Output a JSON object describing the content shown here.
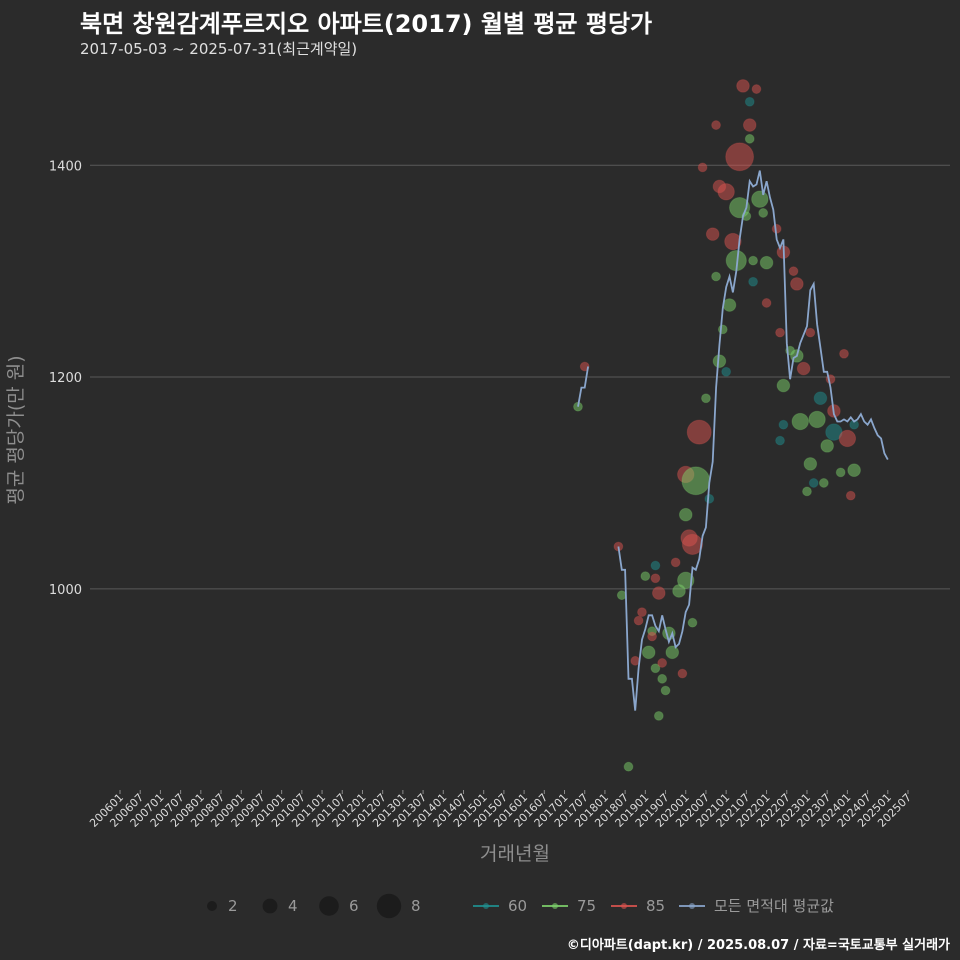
{
  "title": "북면 창원감계푸르지오 아파트(2017) 월별 평균 평당가",
  "subtitle": "2017-05-03 ~ 2025-07-31(최근계약일)",
  "footer": "©디아파트(dapt.kr) / 2025.08.07 / 자료=국토교통부 실거래가",
  "colors": {
    "background": "#2b2b2b",
    "grid": "#5a5a5a",
    "s60": "#1f8f8f",
    "s75": "#7ccf6a",
    "s85": "#d9534f",
    "avg": "#8aa6cc"
  },
  "chart_data": {
    "type": "scatter",
    "title": "북면 창원감계푸르지오 아파트(2017) 월별 평균 평당가",
    "xlabel": "거래년월",
    "ylabel": "평균 평당가(만 원)",
    "yticks": [
      1000,
      1200,
      1400
    ],
    "ylim": [
      810,
      1490
    ],
    "grid": true,
    "legend_position": "bottom",
    "x_ticks": [
      "200601",
      "200607",
      "200701",
      "200707",
      "200801",
      "200807",
      "200901",
      "200907",
      "201001",
      "201007",
      "201101",
      "201107",
      "201201",
      "201207",
      "201301",
      "201307",
      "201401",
      "201407",
      "201501",
      "201507",
      "201601",
      "201607",
      "201701",
      "201707",
      "201801",
      "201807",
      "201901",
      "201907",
      "202001",
      "202007",
      "202101",
      "202107",
      "202201",
      "202207",
      "202301",
      "202307",
      "202401",
      "202407",
      "202501",
      "202507"
    ],
    "size_legend": [
      {
        "label": "2",
        "value": 2
      },
      {
        "label": "4",
        "value": 4
      },
      {
        "label": "6",
        "value": 6
      },
      {
        "label": "8",
        "value": 8
      }
    ],
    "series_legend": [
      {
        "label": "60",
        "color": "#1f8f8f"
      },
      {
        "label": "75",
        "color": "#7ccf6a"
      },
      {
        "label": "85",
        "color": "#d9534f"
      },
      {
        "label": "모든 면적대 평균값",
        "color": "#8aa6cc"
      }
    ],
    "average_line": [
      {
        "segment": [
          [
            "2017-05",
            1172
          ],
          [
            "2017-06",
            1190
          ],
          [
            "2017-07",
            1190
          ],
          [
            "2017-08",
            1210
          ]
        ]
      },
      {
        "segment": [
          [
            "2018-05",
            1040
          ],
          [
            "2018-06",
            1018
          ],
          [
            "2018-07",
            1018
          ],
          [
            "2018-08",
            915
          ],
          [
            "2018-09",
            915
          ],
          [
            "2018-10",
            885
          ],
          [
            "2018-11",
            925
          ],
          [
            "2018-12",
            952
          ],
          [
            "2019-01",
            962
          ],
          [
            "2019-02",
            975
          ],
          [
            "2019-03",
            975
          ],
          [
            "2019-04",
            965
          ],
          [
            "2019-05",
            960
          ],
          [
            "2019-06",
            975
          ],
          [
            "2019-07",
            962
          ],
          [
            "2019-08",
            950
          ],
          [
            "2019-09",
            958
          ],
          [
            "2019-10",
            945
          ],
          [
            "2019-11",
            948
          ],
          [
            "2019-12",
            960
          ],
          [
            "2020-01",
            978
          ],
          [
            "2020-02",
            985
          ],
          [
            "2020-03",
            1020
          ],
          [
            "2020-04",
            1018
          ],
          [
            "2020-05",
            1028
          ],
          [
            "2020-06",
            1050
          ],
          [
            "2020-07",
            1058
          ],
          [
            "2020-08",
            1100
          ],
          [
            "2020-09",
            1120
          ],
          [
            "2020-10",
            1190
          ],
          [
            "2020-11",
            1230
          ],
          [
            "2020-12",
            1265
          ],
          [
            "2021-01",
            1285
          ],
          [
            "2021-02",
            1295
          ],
          [
            "2021-03",
            1280
          ],
          [
            "2021-04",
            1300
          ],
          [
            "2021-05",
            1330
          ],
          [
            "2021-06",
            1352
          ],
          [
            "2021-07",
            1360
          ],
          [
            "2021-08",
            1385
          ],
          [
            "2021-09",
            1380
          ],
          [
            "2021-10",
            1382
          ],
          [
            "2021-11",
            1395
          ],
          [
            "2021-12",
            1372
          ],
          [
            "2022-01",
            1385
          ],
          [
            "2022-02",
            1370
          ],
          [
            "2022-03",
            1358
          ],
          [
            "2022-04",
            1330
          ],
          [
            "2022-05",
            1322
          ],
          [
            "2022-06",
            1330
          ],
          [
            "2022-07",
            1232
          ],
          [
            "2022-08",
            1198
          ],
          [
            "2022-09",
            1218
          ],
          [
            "2022-10",
            1220
          ],
          [
            "2022-11",
            1232
          ],
          [
            "2022-12",
            1240
          ],
          [
            "2023-01",
            1248
          ],
          [
            "2023-02",
            1282
          ],
          [
            "2023-03",
            1288
          ],
          [
            "2023-04",
            1250
          ],
          [
            "2023-05",
            1228
          ],
          [
            "2023-06",
            1205
          ],
          [
            "2023-07",
            1205
          ],
          [
            "2023-08",
            1190
          ],
          [
            "2023-09",
            1165
          ],
          [
            "2023-10",
            1158
          ],
          [
            "2023-11",
            1158
          ],
          [
            "2023-12",
            1160
          ],
          [
            "2024-01",
            1158
          ],
          [
            "2024-02",
            1162
          ],
          [
            "2024-03",
            1158
          ],
          [
            "2024-04",
            1160
          ],
          [
            "2024-05",
            1165
          ],
          [
            "2024-06",
            1158
          ],
          [
            "2024-07",
            1155
          ],
          [
            "2024-08",
            1160
          ],
          [
            "2024-09",
            1152
          ],
          [
            "2024-10",
            1145
          ],
          [
            "2024-11",
            1142
          ],
          [
            "2024-12",
            1128
          ],
          [
            "2025-01",
            1122
          ]
        ]
      }
    ],
    "points": [
      {
        "series": "75",
        "x": "2017-05",
        "y": 1172,
        "size": 1
      },
      {
        "series": "85",
        "x": "2017-07",
        "y": 1210,
        "size": 1
      },
      {
        "series": "85",
        "x": "2018-05",
        "y": 1040,
        "size": 1
      },
      {
        "series": "75",
        "x": "2018-06",
        "y": 994,
        "size": 1
      },
      {
        "series": "75",
        "x": "2018-08",
        "y": 832,
        "size": 1
      },
      {
        "series": "85",
        "x": "2018-10",
        "y": 932,
        "size": 1
      },
      {
        "series": "85",
        "x": "2018-11",
        "y": 970,
        "size": 1
      },
      {
        "series": "85",
        "x": "2018-12",
        "y": 978,
        "size": 1
      },
      {
        "series": "75",
        "x": "2019-01",
        "y": 1012,
        "size": 1
      },
      {
        "series": "75",
        "x": "2019-02",
        "y": 940,
        "size": 2
      },
      {
        "series": "75",
        "x": "2019-03",
        "y": 960,
        "size": 1
      },
      {
        "series": "85",
        "x": "2019-03",
        "y": 955,
        "size": 1
      },
      {
        "series": "85",
        "x": "2019-04",
        "y": 1010,
        "size": 1
      },
      {
        "series": "60",
        "x": "2019-04",
        "y": 1022,
        "size": 1
      },
      {
        "series": "75",
        "x": "2019-04",
        "y": 925,
        "size": 1
      },
      {
        "series": "85",
        "x": "2019-05",
        "y": 996,
        "size": 2
      },
      {
        "series": "75",
        "x": "2019-05",
        "y": 880,
        "size": 1
      },
      {
        "series": "75",
        "x": "2019-06",
        "y": 915,
        "size": 1
      },
      {
        "series": "85",
        "x": "2019-06",
        "y": 930,
        "size": 1
      },
      {
        "series": "75",
        "x": "2019-07",
        "y": 904,
        "size": 1
      },
      {
        "series": "75",
        "x": "2019-08",
        "y": 958,
        "size": 2
      },
      {
        "series": "75",
        "x": "2019-09",
        "y": 940,
        "size": 2
      },
      {
        "series": "85",
        "x": "2019-10",
        "y": 1025,
        "size": 1
      },
      {
        "series": "75",
        "x": "2019-11",
        "y": 998,
        "size": 2
      },
      {
        "series": "85",
        "x": "2019-12",
        "y": 920,
        "size": 1
      },
      {
        "series": "75",
        "x": "2020-01",
        "y": 1008,
        "size": 3
      },
      {
        "series": "85",
        "x": "2020-01",
        "y": 1108,
        "size": 3
      },
      {
        "series": "75",
        "x": "2020-01",
        "y": 1070,
        "size": 2
      },
      {
        "series": "85",
        "x": "2020-02",
        "y": 1048,
        "size": 3
      },
      {
        "series": "85",
        "x": "2020-03",
        "y": 1042,
        "size": 4
      },
      {
        "series": "75",
        "x": "2020-03",
        "y": 968,
        "size": 1
      },
      {
        "series": "75",
        "x": "2020-04",
        "y": 1102,
        "size": 6
      },
      {
        "series": "85",
        "x": "2020-05",
        "y": 1148,
        "size": 5
      },
      {
        "series": "85",
        "x": "2020-06",
        "y": 1398,
        "size": 1
      },
      {
        "series": "75",
        "x": "2020-07",
        "y": 1180,
        "size": 1
      },
      {
        "series": "60",
        "x": "2020-08",
        "y": 1085,
        "size": 1
      },
      {
        "series": "85",
        "x": "2020-09",
        "y": 1335,
        "size": 2
      },
      {
        "series": "75",
        "x": "2020-10",
        "y": 1295,
        "size": 1
      },
      {
        "series": "85",
        "x": "2020-10",
        "y": 1438,
        "size": 1
      },
      {
        "series": "75",
        "x": "2020-11",
        "y": 1215,
        "size": 2
      },
      {
        "series": "85",
        "x": "2020-11",
        "y": 1380,
        "size": 2
      },
      {
        "series": "75",
        "x": "2020-12",
        "y": 1245,
        "size": 1
      },
      {
        "series": "60",
        "x": "2021-01",
        "y": 1205,
        "size": 1
      },
      {
        "series": "85",
        "x": "2021-01",
        "y": 1375,
        "size": 3
      },
      {
        "series": "75",
        "x": "2021-02",
        "y": 1268,
        "size": 2
      },
      {
        "series": "85",
        "x": "2021-03",
        "y": 1328,
        "size": 3
      },
      {
        "series": "75",
        "x": "2021-04",
        "y": 1310,
        "size": 4
      },
      {
        "series": "75",
        "x": "2021-05",
        "y": 1360,
        "size": 4
      },
      {
        "series": "85",
        "x": "2021-05",
        "y": 1408,
        "size": 6
      },
      {
        "series": "85",
        "x": "2021-06",
        "y": 1475,
        "size": 2
      },
      {
        "series": "75",
        "x": "2021-07",
        "y": 1352,
        "size": 1
      },
      {
        "series": "85",
        "x": "2021-08",
        "y": 1438,
        "size": 2
      },
      {
        "series": "60",
        "x": "2021-08",
        "y": 1460,
        "size": 1
      },
      {
        "series": "75",
        "x": "2021-08",
        "y": 1425,
        "size": 1
      },
      {
        "series": "75",
        "x": "2021-09",
        "y": 1310,
        "size": 1
      },
      {
        "series": "60",
        "x": "2021-09",
        "y": 1290,
        "size": 1
      },
      {
        "series": "85",
        "x": "2021-10",
        "y": 1472,
        "size": 1
      },
      {
        "series": "75",
        "x": "2021-11",
        "y": 1368,
        "size": 3
      },
      {
        "series": "75",
        "x": "2021-12",
        "y": 1355,
        "size": 1
      },
      {
        "series": "75",
        "x": "2022-01",
        "y": 1308,
        "size": 2
      },
      {
        "series": "85",
        "x": "2022-01",
        "y": 1270,
        "size": 1
      },
      {
        "series": "85",
        "x": "2022-04",
        "y": 1340,
        "size": 1
      },
      {
        "series": "85",
        "x": "2022-05",
        "y": 1242,
        "size": 1
      },
      {
        "series": "60",
        "x": "2022-05",
        "y": 1140,
        "size": 1
      },
      {
        "series": "85",
        "x": "2022-06",
        "y": 1318,
        "size": 2
      },
      {
        "series": "75",
        "x": "2022-06",
        "y": 1192,
        "size": 2
      },
      {
        "series": "60",
        "x": "2022-06",
        "y": 1155,
        "size": 1
      },
      {
        "series": "75",
        "x": "2022-08",
        "y": 1225,
        "size": 1
      },
      {
        "series": "85",
        "x": "2022-09",
        "y": 1300,
        "size": 1
      },
      {
        "series": "85",
        "x": "2022-10",
        "y": 1288,
        "size": 2
      },
      {
        "series": "75",
        "x": "2022-10",
        "y": 1220,
        "size": 2
      },
      {
        "series": "75",
        "x": "2022-11",
        "y": 1158,
        "size": 3
      },
      {
        "series": "85",
        "x": "2022-12",
        "y": 1208,
        "size": 2
      },
      {
        "series": "75",
        "x": "2023-01",
        "y": 1092,
        "size": 1
      },
      {
        "series": "75",
        "x": "2023-02",
        "y": 1118,
        "size": 2
      },
      {
        "series": "85",
        "x": "2023-02",
        "y": 1242,
        "size": 1
      },
      {
        "series": "60",
        "x": "2023-03",
        "y": 1100,
        "size": 1
      },
      {
        "series": "75",
        "x": "2023-04",
        "y": 1160,
        "size": 3
      },
      {
        "series": "60",
        "x": "2023-05",
        "y": 1180,
        "size": 2
      },
      {
        "series": "75",
        "x": "2023-06",
        "y": 1100,
        "size": 1
      },
      {
        "series": "75",
        "x": "2023-07",
        "y": 1135,
        "size": 2
      },
      {
        "series": "85",
        "x": "2023-08",
        "y": 1198,
        "size": 1
      },
      {
        "series": "85",
        "x": "2023-09",
        "y": 1168,
        "size": 2
      },
      {
        "series": "60",
        "x": "2023-09",
        "y": 1148,
        "size": 3
      },
      {
        "series": "75",
        "x": "2023-11",
        "y": 1110,
        "size": 1
      },
      {
        "series": "85",
        "x": "2023-12",
        "y": 1222,
        "size": 1
      },
      {
        "series": "85",
        "x": "2024-01",
        "y": 1142,
        "size": 3
      },
      {
        "series": "85",
        "x": "2024-02",
        "y": 1088,
        "size": 1
      },
      {
        "series": "75",
        "x": "2024-03",
        "y": 1112,
        "size": 2
      },
      {
        "series": "60",
        "x": "2024-03",
        "y": 1155,
        "size": 1
      }
    ]
  }
}
